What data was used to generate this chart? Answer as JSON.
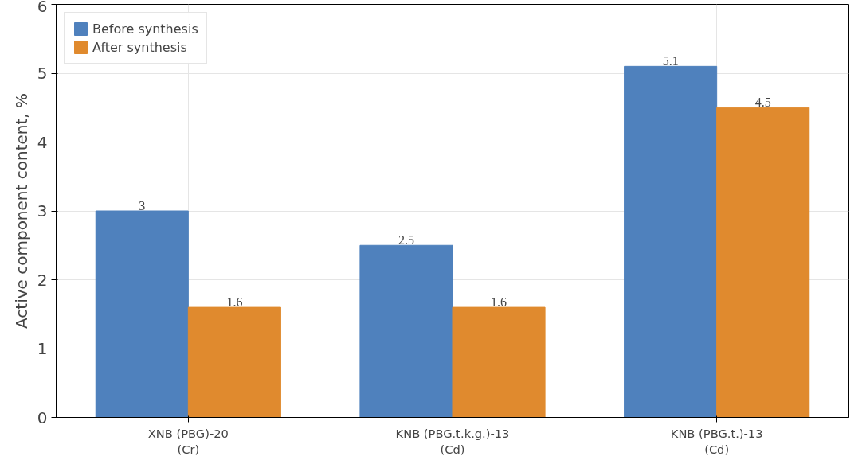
{
  "chart_data": {
    "type": "bar",
    "ylabel": "Active component content, %",
    "categories": [
      "XNB (PBG)-20\n(Cr)",
      "KNB (PBG.t.k.g.)-13\n(Cd)",
      "KNB (PBG.t.)-13\n(Cd)"
    ],
    "series": [
      {
        "name": "Before synthesis",
        "color": "#4f81bd",
        "values": [
          3,
          2.5,
          5.1
        ]
      },
      {
        "name": "After synthesis",
        "color": "#e08a2e",
        "values": [
          1.6,
          1.6,
          4.5
        ]
      }
    ],
    "ylim": [
      0,
      6
    ],
    "yticks": [
      0,
      1,
      2,
      3,
      4,
      5,
      6
    ],
    "grid": true,
    "legend": "top left",
    "data_labels": true
  }
}
